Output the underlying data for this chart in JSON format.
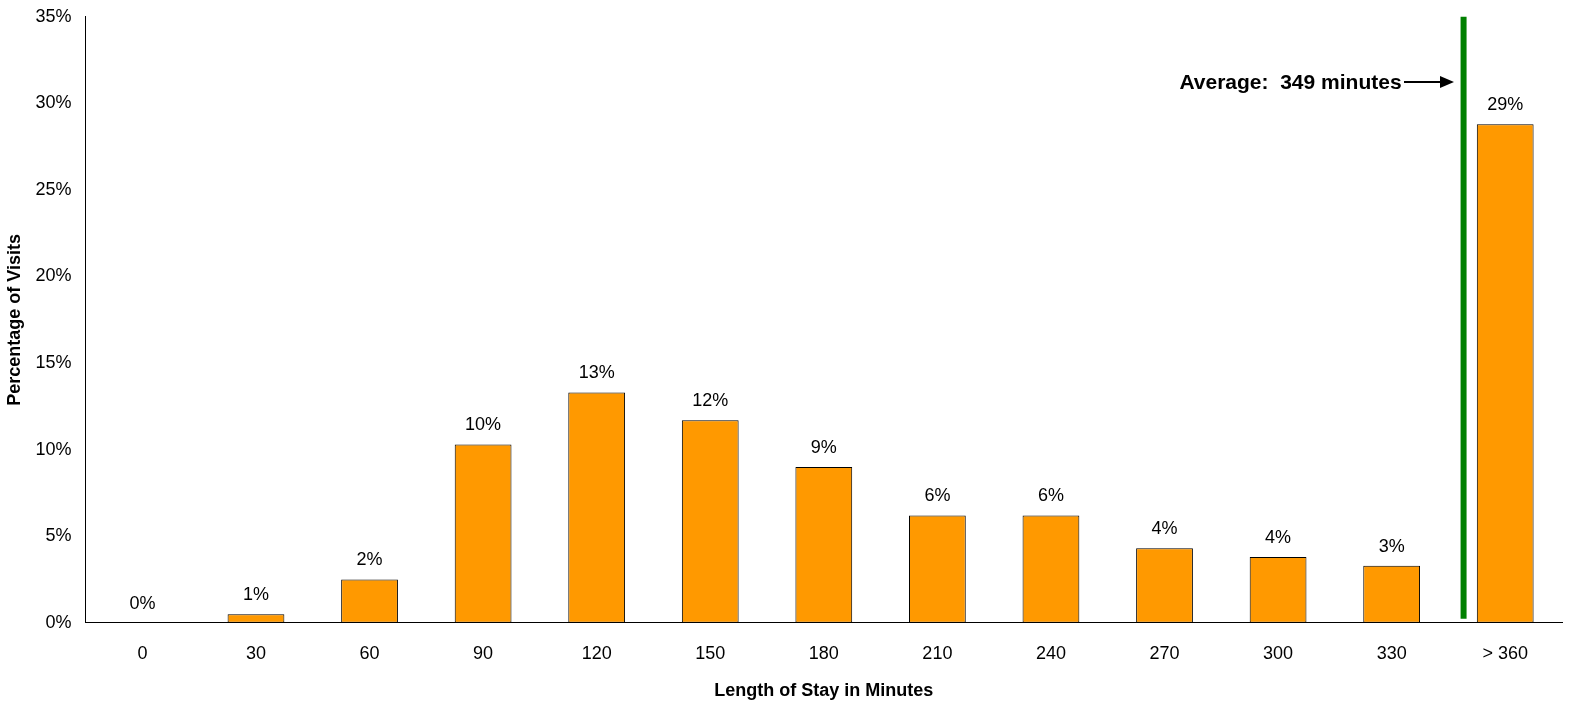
{
  "chart_data": {
    "type": "bar",
    "xlabel": "Length of Stay in Minutes",
    "ylabel": "Percentage of Visits",
    "x": [
      0,
      30,
      60,
      90,
      120,
      150,
      180,
      210,
      240,
      270,
      300,
      330,
      360
    ],
    "xlim": [
      -15,
      375
    ],
    "xticks": [
      0,
      30,
      60,
      90,
      120,
      150,
      180,
      210,
      240,
      270,
      300,
      330,
      {
        "value": 360,
        "label": "> 360"
      }
    ],
    "values": [
      0,
      0.5,
      2.5,
      10.3,
      13.3,
      11.7,
      9.0,
      6.2,
      6.2,
      4.3,
      3.8,
      3.3,
      28.8
    ],
    "value_labels": [
      "0%",
      "1%",
      "2%",
      "10%",
      "13%",
      "12%",
      "9%",
      "6%",
      "6%",
      "4%",
      "4%",
      "3%",
      "29%"
    ],
    "color": "#ff9900",
    "ylim": [
      0,
      35
    ],
    "yticks": [
      {
        "value": 0,
        "label": "0%"
      },
      {
        "value": 5,
        "label": "5%"
      },
      {
        "value": 10,
        "label": "10%"
      },
      {
        "value": 15,
        "label": "15%"
      },
      {
        "value": 20,
        "label": "20%"
      },
      {
        "value": 25,
        "label": "25%"
      },
      {
        "value": 30,
        "label": "30%"
      },
      {
        "value": 35,
        "label": "35%"
      }
    ],
    "ref_lines": [
      {
        "axis": "x",
        "value": 349,
        "label": "Average:  349 minutes",
        "color": "#008000"
      }
    ],
    "grid": false,
    "legend": false
  }
}
